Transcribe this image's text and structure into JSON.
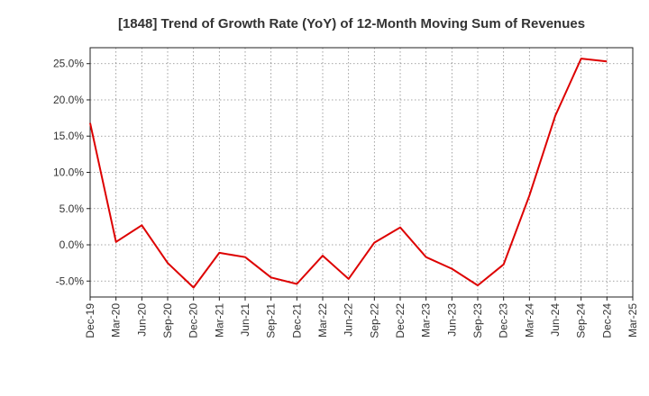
{
  "chart_data": {
    "type": "line",
    "title": "[1848]  Trend of Growth Rate (YoY) of 12-Month Moving Sum of Revenues",
    "xlabel": "",
    "ylabel": "",
    "x": [
      "Dec-19",
      "Mar-20",
      "Jun-20",
      "Sep-20",
      "Dec-20",
      "Mar-21",
      "Jun-21",
      "Sep-21",
      "Dec-21",
      "Mar-22",
      "Jun-22",
      "Sep-22",
      "Dec-22",
      "Mar-23",
      "Jun-23",
      "Sep-23",
      "Dec-23",
      "Mar-24",
      "Jun-24",
      "Sep-24",
      "Dec-24",
      "Mar-25"
    ],
    "series": [
      {
        "color": "#dd0000",
        "values": [
          16.8,
          0.4,
          2.7,
          -2.5,
          -5.9,
          -1.1,
          -1.7,
          -4.5,
          -5.4,
          -1.5,
          -4.7,
          0.3,
          2.4,
          -1.7,
          -3.3,
          -5.6,
          -2.7,
          6.8,
          17.8,
          25.7,
          25.3,
          null
        ]
      }
    ],
    "ylim": [
      -7.2,
      27.2
    ],
    "yticks": [
      -5,
      0,
      5,
      10,
      15,
      20,
      25
    ],
    "ytick_labels": [
      "-5.0%",
      "0.0%",
      "5.0%",
      "10.0%",
      "15.0%",
      "20.0%",
      "25.0%"
    ],
    "grid": true,
    "legend": "none"
  }
}
